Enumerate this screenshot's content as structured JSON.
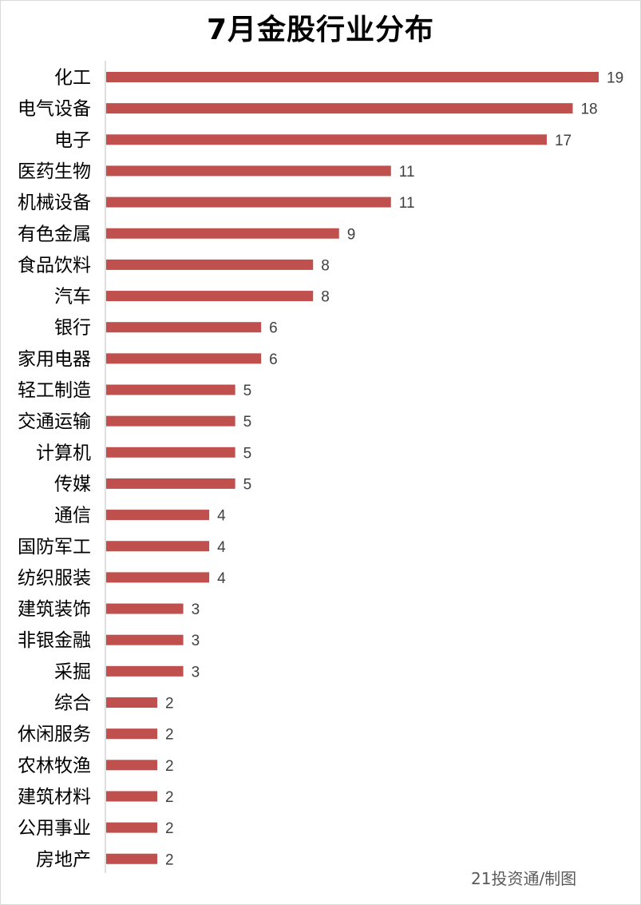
{
  "title": "7月金股行业分布",
  "credit": "21投资通/制图",
  "colors": {
    "bar": "#c0504d",
    "axis": "#bfbfbf",
    "category_text": "#000000",
    "value_text": "#404040"
  },
  "chart_data": {
    "type": "bar",
    "orientation": "horizontal",
    "title": "7月金股行业分布",
    "categories": [
      "化工",
      "电气设备",
      "电子",
      "医药生物",
      "机械设备",
      "有色金属",
      "食品饮料",
      "汽车",
      "银行",
      "家用电器",
      "轻工制造",
      "交通运输",
      "计算机",
      "传媒",
      "通信",
      "国防军工",
      "纺织服装",
      "建筑装饰",
      "非银金融",
      "采掘",
      "综合",
      "休闲服务",
      "农林牧渔",
      "建筑材料",
      "公用事业",
      "房地产"
    ],
    "values": [
      19,
      18,
      17,
      11,
      11,
      9,
      8,
      8,
      6,
      6,
      5,
      5,
      5,
      5,
      4,
      4,
      4,
      3,
      3,
      3,
      2,
      2,
      2,
      2,
      2,
      2
    ],
    "xlabel": "",
    "ylabel": "",
    "xlim": [
      0,
      19
    ],
    "grid": false,
    "legend": "none",
    "data_labels": true
  }
}
